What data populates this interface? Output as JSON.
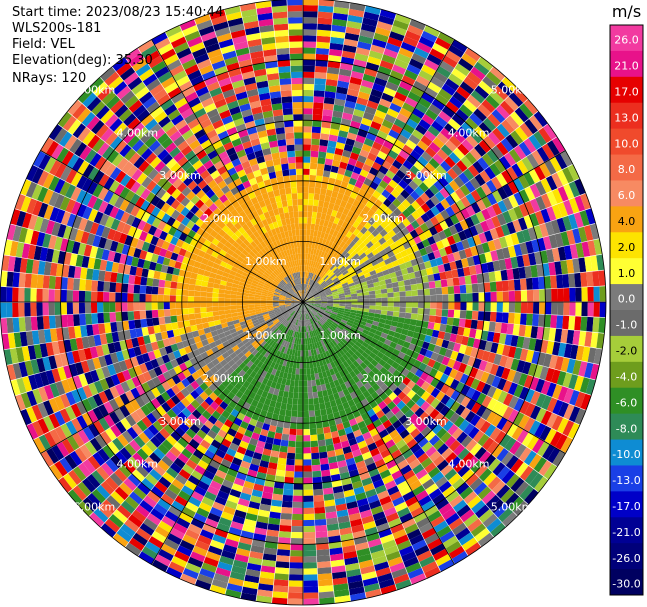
{
  "header": {
    "start_time": "Start time: 2023/08/23 15:40:44",
    "station": "WLS200s-181",
    "field": "Field: VEL",
    "elevation": "Elevation(deg): 35.30",
    "nrays": "NRays: 120"
  },
  "chart_data": {
    "type": "ppi",
    "field": "VEL",
    "units": "m/s",
    "elevation_deg": 35.3,
    "n_rays": 120,
    "range_rings_km": [
      1.0,
      2.0,
      3.0,
      4.0,
      5.0
    ],
    "ring_label_text": [
      "1.00km",
      "2.00km",
      "3.00km",
      "4.00km",
      "5.00km"
    ],
    "colorbar": {
      "title": "m/s",
      "ticks": [
        "26.0",
        "21.0",
        "17.0",
        "13.0",
        "10.0",
        "8.0",
        "6.0",
        "4.0",
        "2.0",
        "1.0",
        "0.0",
        "-1.0",
        "-2.0",
        "-4.0",
        "-6.0",
        "-8.0",
        "-10.0",
        "-13.0",
        "-17.0",
        "-21.0",
        "-26.0",
        "-30.0"
      ],
      "colors": [
        "#f23aa0",
        "#e8128a",
        "#e60000",
        "#ec2e1f",
        "#f04a2c",
        "#f46a46",
        "#f78a62",
        "#f9a312",
        "#fde300",
        "#ffff33",
        "#7b7b7b",
        "#6b6b6b",
        "#a6cd3a",
        "#6e9d1d",
        "#2f8f25",
        "#2e8b57",
        "#0e8cd3",
        "#1a3fe6",
        "#0000c8",
        "#000094",
        "#00007a",
        "#000060"
      ]
    },
    "inner_field_description_colors": {
      "positive_lobe": "#f9a312",
      "positive_light": "#fde300",
      "zero": "#7b7b7b",
      "negative_lobe": "#2f8f25",
      "negative_light": "#a6cd3a"
    }
  }
}
